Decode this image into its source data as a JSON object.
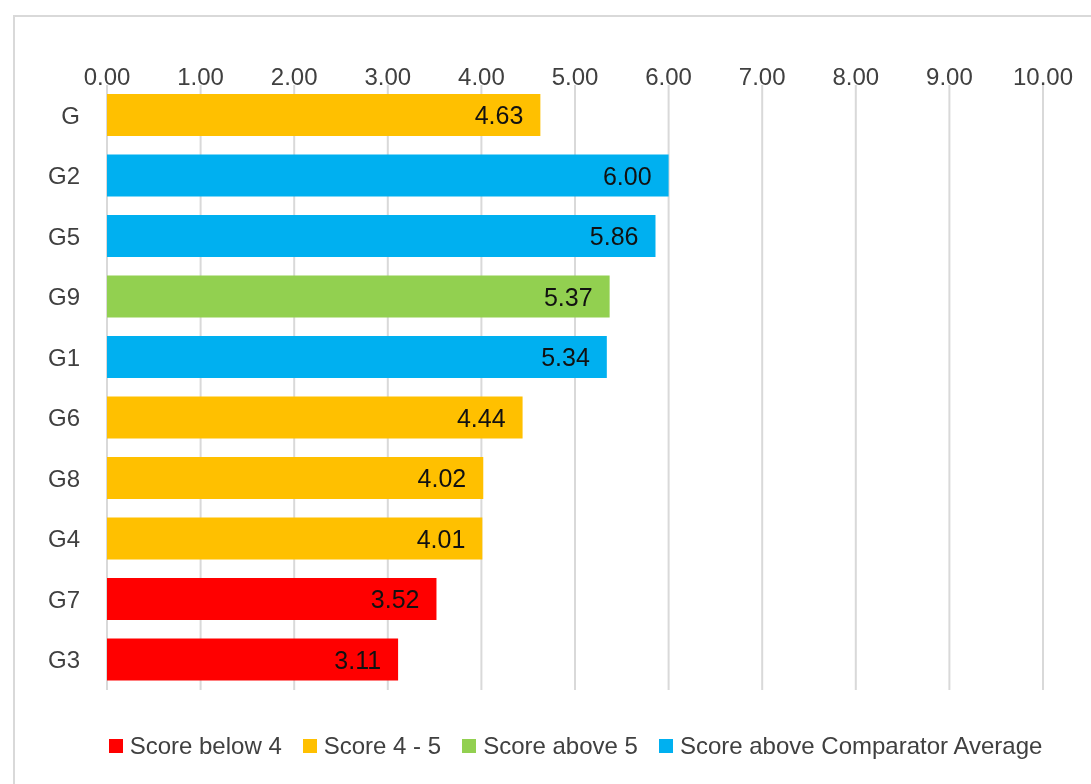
{
  "chart_data": {
    "type": "bar",
    "orientation": "horizontal",
    "stacked": true,
    "categories": [
      "G",
      "G2",
      "G5",
      "G9",
      "G1",
      "G6",
      "G8",
      "G4",
      "G7",
      "G3"
    ],
    "series": [
      {
        "name": "Score below 4",
        "color": "#ff0000",
        "values": [
          null,
          null,
          null,
          null,
          null,
          null,
          null,
          null,
          3.52,
          3.11
        ],
        "value_labels": [
          null,
          null,
          null,
          null,
          null,
          null,
          null,
          null,
          "3.52",
          "3.11"
        ]
      },
      {
        "name": "Score 4 - 5",
        "color": "#ffc000",
        "values": [
          4.63,
          null,
          null,
          null,
          null,
          4.44,
          4.02,
          4.01,
          null,
          null
        ],
        "value_labels": [
          "4.63",
          null,
          null,
          null,
          null,
          "4.44",
          "4.02",
          "4.01",
          null,
          null
        ]
      },
      {
        "name": "Score above 5",
        "color": "#92d050",
        "values": [
          null,
          null,
          null,
          5.37,
          null,
          null,
          null,
          null,
          null,
          null
        ],
        "value_labels": [
          null,
          null,
          null,
          "5.37",
          null,
          null,
          null,
          null,
          null,
          null
        ]
      },
      {
        "name": "Score above Comparator Average",
        "color": "#00b0f0",
        "values": [
          null,
          6.0,
          5.86,
          null,
          5.34,
          null,
          null,
          null,
          null,
          null
        ],
        "value_labels": [
          null,
          "6.00",
          "5.86",
          null,
          "5.34",
          null,
          null,
          null,
          null,
          null
        ]
      }
    ],
    "xlim": [
      0,
      10
    ],
    "xticks": [
      {
        "value": 0,
        "label": "0.00"
      },
      {
        "value": 1,
        "label": "1.00"
      },
      {
        "value": 2,
        "label": "2.00"
      },
      {
        "value": 3,
        "label": "3.00"
      },
      {
        "value": 4,
        "label": "4.00"
      },
      {
        "value": 5,
        "label": "5.00"
      },
      {
        "value": 6,
        "label": "6.00"
      },
      {
        "value": 7,
        "label": "7.00"
      },
      {
        "value": 8,
        "label": "8.00"
      },
      {
        "value": 9,
        "label": "9.00"
      },
      {
        "value": 10,
        "label": "10.00"
      }
    ],
    "grid": "x",
    "legend": "bottom"
  }
}
